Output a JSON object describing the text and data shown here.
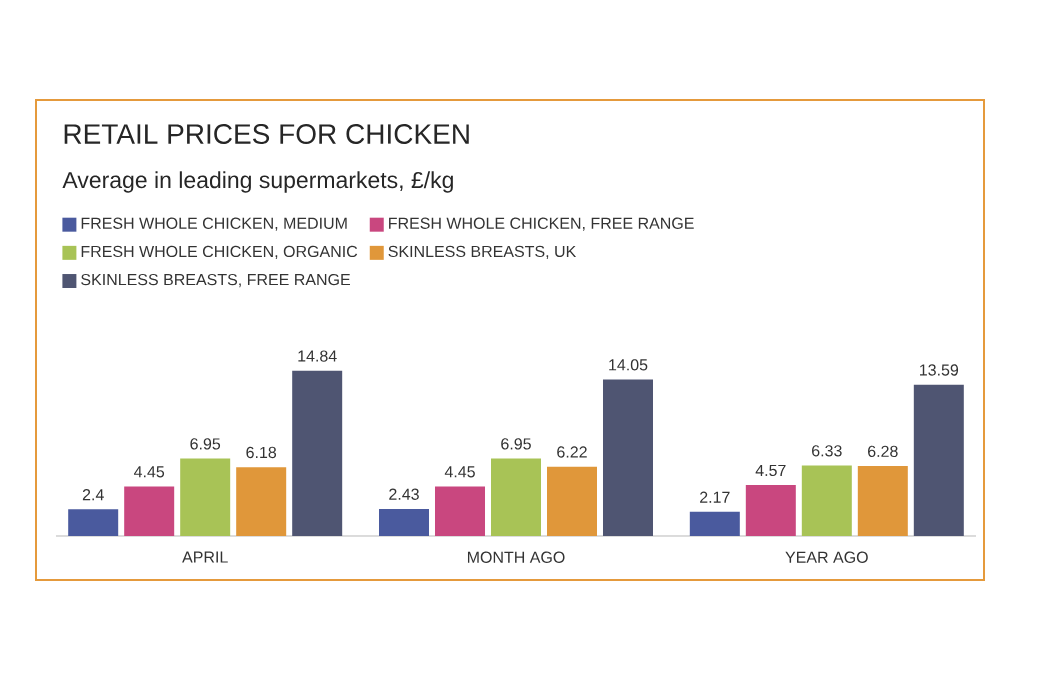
{
  "chart_data": {
    "type": "bar",
    "title": "RETAIL PRICES FOR CHICKEN",
    "subtitle": "Average in leading supermarkets, £/kg",
    "categories": [
      "APRIL",
      "MONTH AGO",
      "YEAR AGO"
    ],
    "series": [
      {
        "name": "FRESH WHOLE CHICKEN, MEDIUM",
        "color": "#4a5a9e",
        "values": [
          2.4,
          2.43,
          2.17
        ]
      },
      {
        "name": "FRESH WHOLE CHICKEN, FREE RANGE",
        "color": "#c9477f",
        "values": [
          4.45,
          4.45,
          4.57
        ]
      },
      {
        "name": "FRESH WHOLE CHICKEN, ORGANIC",
        "color": "#a8c356",
        "values": [
          6.95,
          6.95,
          6.33
        ]
      },
      {
        "name": "SKINLESS BREASTS, UK",
        "color": "#e0973a",
        "values": [
          6.18,
          6.22,
          6.28
        ]
      },
      {
        "name": "SKINLESS BREASTS, FREE RANGE",
        "color": "#4f5572",
        "values": [
          14.84,
          14.05,
          13.59
        ]
      }
    ],
    "data_labels": true,
    "legend": "top left"
  }
}
